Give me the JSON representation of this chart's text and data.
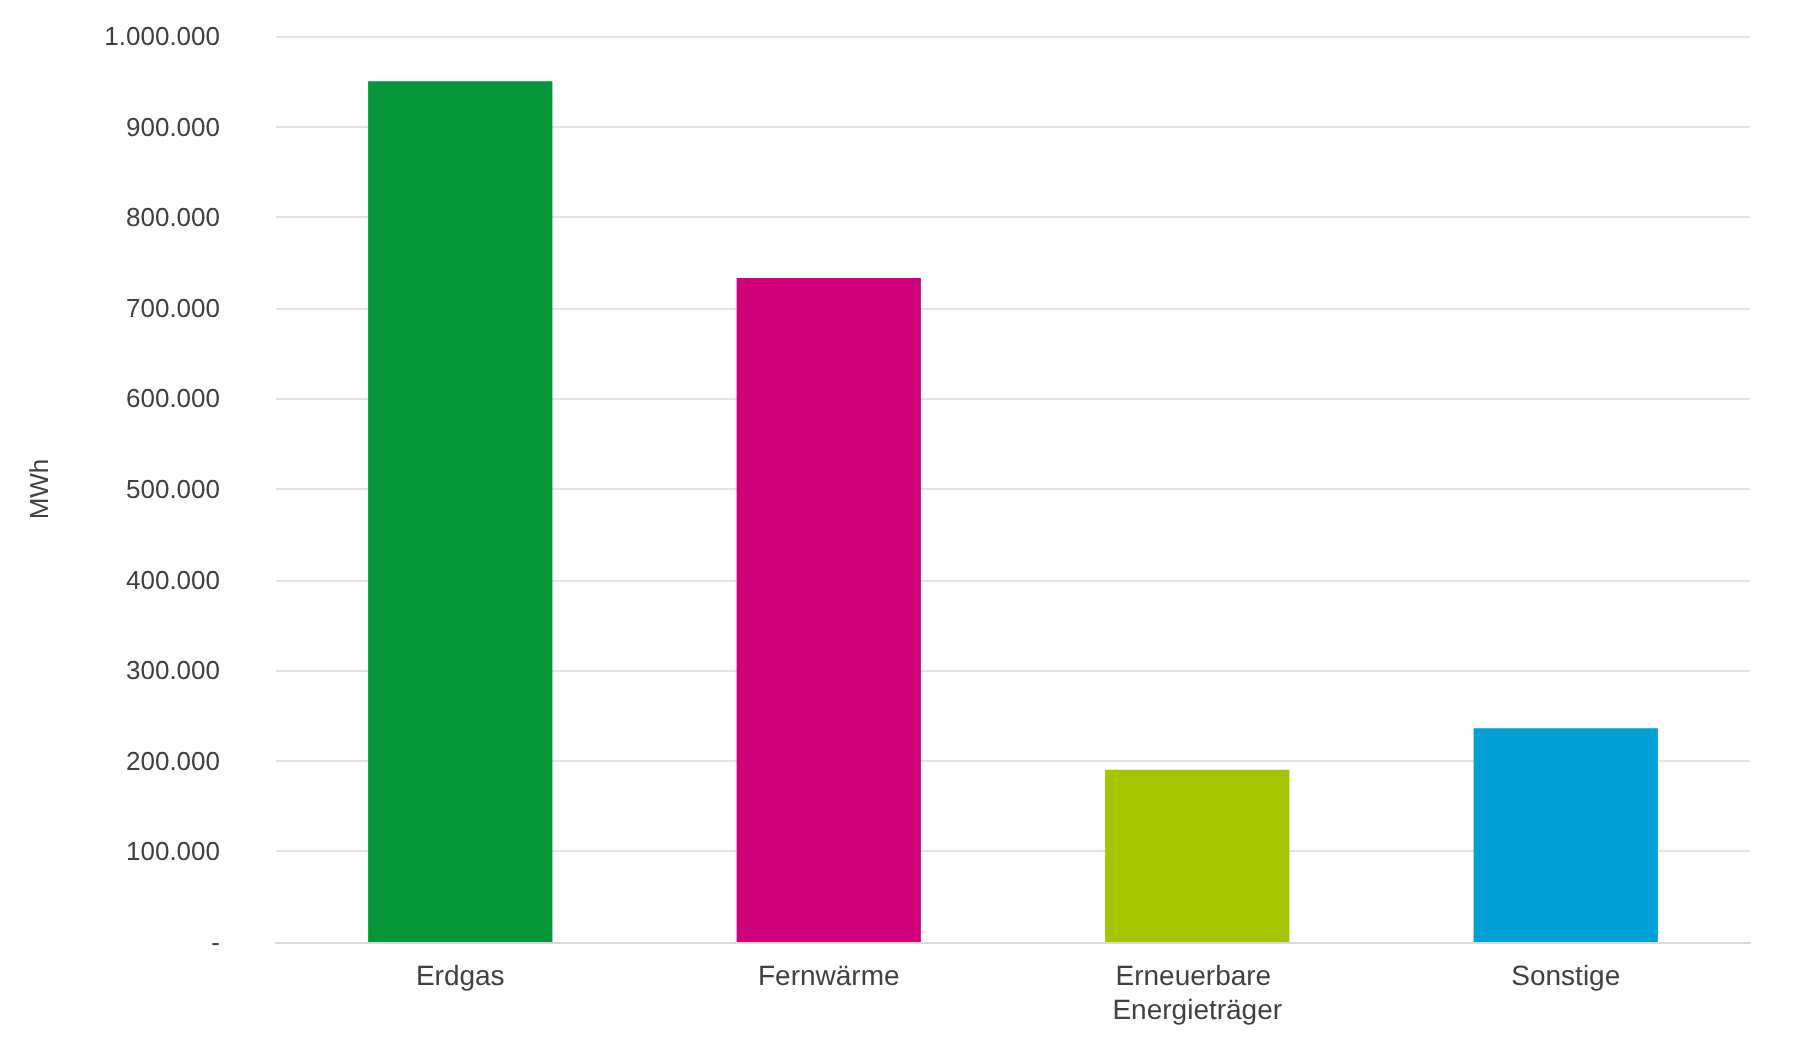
{
  "chart_data": {
    "type": "bar",
    "ylabel": "MWh",
    "categories": [
      "Erdgas",
      "Fernwärme",
      "Erneuerbare Energieträger",
      "Sonstige"
    ],
    "values": [
      950000,
      733000,
      190000,
      236000
    ],
    "colors": [
      "#05963a",
      "#d0007a",
      "#a5c500",
      "#009fd6"
    ],
    "ylim": [
      0,
      1000000
    ],
    "yticks": [
      {
        "value": 0,
        "label": "-"
      },
      {
        "value": 100000,
        "label": "100.000"
      },
      {
        "value": 200000,
        "label": "200.000"
      },
      {
        "value": 300000,
        "label": "300.000"
      },
      {
        "value": 400000,
        "label": "400.000"
      },
      {
        "value": 500000,
        "label": "500.000"
      },
      {
        "value": 600000,
        "label": "600.000"
      },
      {
        "value": 700000,
        "label": "700.000"
      },
      {
        "value": 800000,
        "label": "800.000"
      },
      {
        "value": 900000,
        "label": "900.000"
      },
      {
        "value": 1000000,
        "label": "1.000.000"
      }
    ],
    "grid": "y"
  }
}
